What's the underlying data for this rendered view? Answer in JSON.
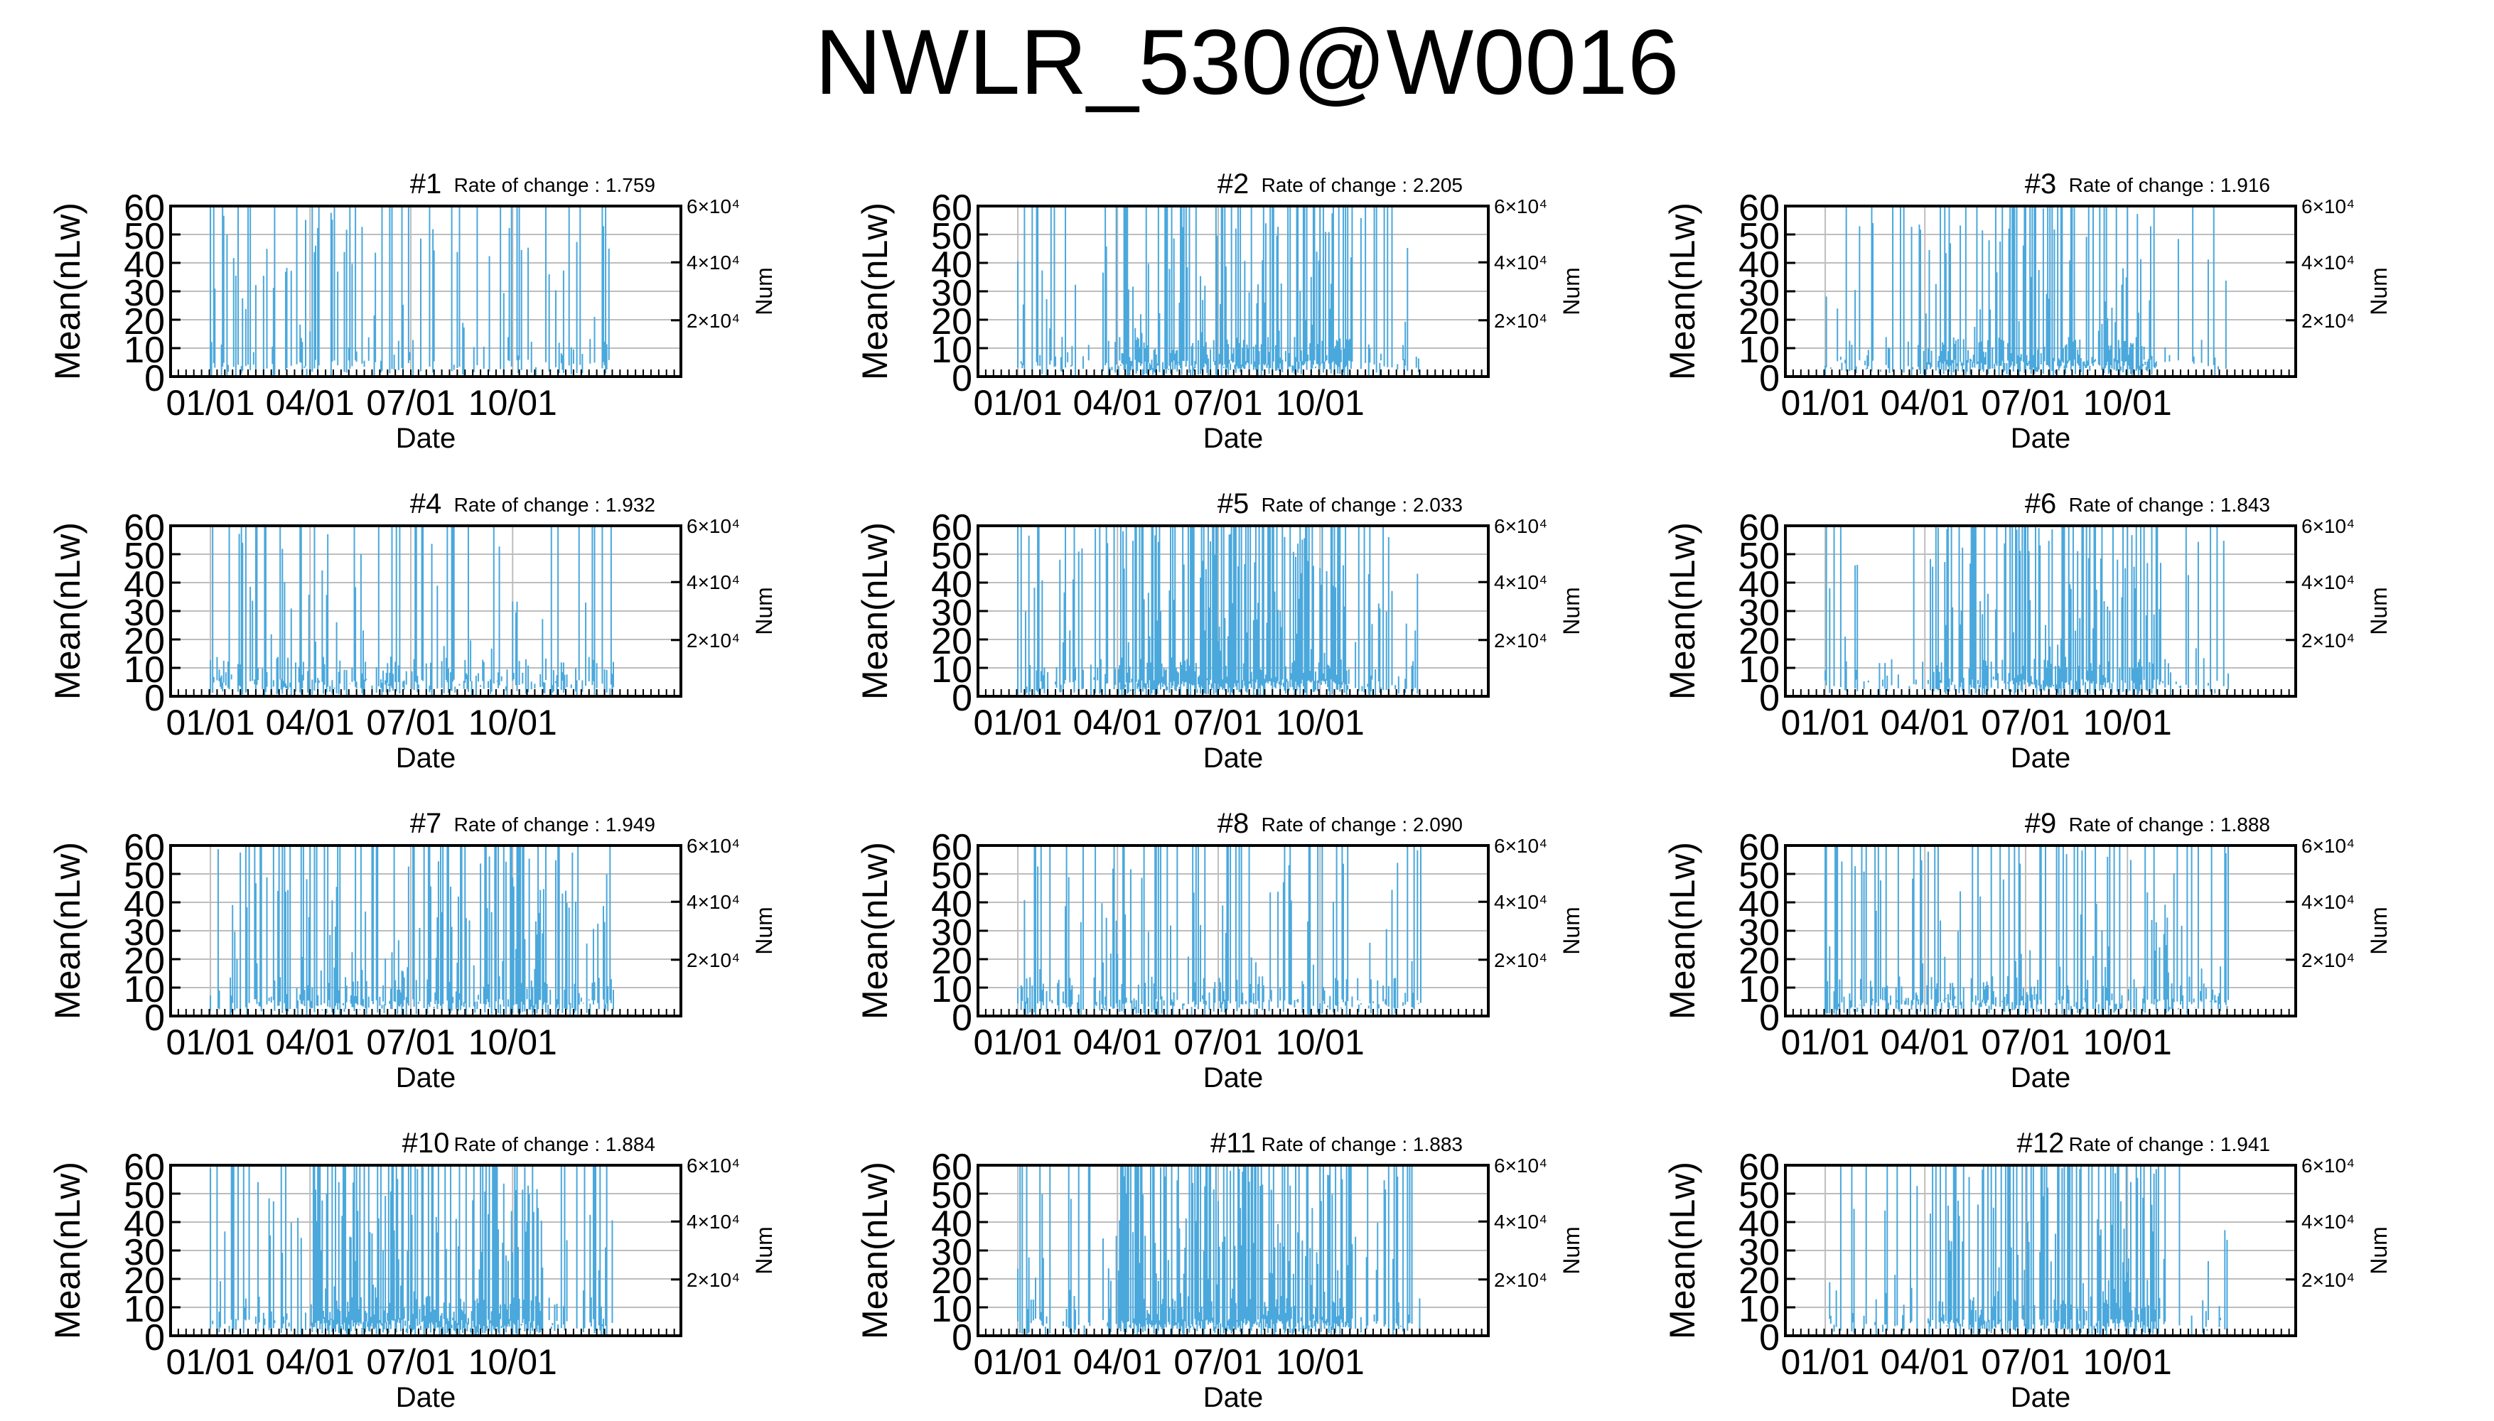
{
  "figure": {
    "title": "NWLR_530@W0016"
  },
  "chart_data": [
    {
      "type": "bar",
      "title": "#1",
      "annotation": "Rate of change : 1.759",
      "xlabel": "Date",
      "ylabel": "Mean(nLw)",
      "y2label": "Num",
      "ylim": [
        0,
        60
      ],
      "y_ticks": [
        0,
        10,
        20,
        30,
        40,
        50,
        60
      ],
      "y2_tick_labels": [
        "2×10⁴",
        "4×10⁴",
        "6×10⁴"
      ],
      "x_tick_labels": [
        "01/01",
        "04/01",
        "07/01",
        "10/01"
      ],
      "grid": true,
      "seed": 11,
      "density": 0.32,
      "peak": 0.7,
      "profile": "uniform"
    },
    {
      "type": "bar",
      "title": "#2",
      "annotation": "Rate of change : 2.205",
      "xlabel": "Date",
      "ylabel": "Mean(nLw)",
      "y2label": "Num",
      "ylim": [
        0,
        60
      ],
      "y_ticks": [
        0,
        10,
        20,
        30,
        40,
        50,
        60
      ],
      "y2_tick_labels": [
        "2×10⁴",
        "4×10⁴",
        "6×10⁴"
      ],
      "x_tick_labels": [
        "01/01",
        "04/01",
        "07/01",
        "10/01"
      ],
      "grid": true,
      "seed": 23,
      "density": 0.55,
      "peak": 0.45,
      "profile": "mid"
    },
    {
      "type": "bar",
      "title": "#3",
      "annotation": "Rate of change : 1.916",
      "xlabel": "Date",
      "ylabel": "Mean(nLw)",
      "y2label": "Num",
      "ylim": [
        0,
        60
      ],
      "y_ticks": [
        0,
        10,
        20,
        30,
        40,
        50,
        60
      ],
      "y2_tick_labels": [
        "2×10⁴",
        "4×10⁴",
        "6×10⁴"
      ],
      "x_tick_labels": [
        "01/01",
        "04/01",
        "07/01",
        "10/01"
      ],
      "grid": true,
      "seed": 37,
      "density": 0.55,
      "peak": 0.45,
      "profile": "mid"
    },
    {
      "type": "bar",
      "title": "#4",
      "annotation": "Rate of change : 1.932",
      "xlabel": "Date",
      "ylabel": "Mean(nLw)",
      "y2label": "Num",
      "ylim": [
        0,
        60
      ],
      "y_ticks": [
        0,
        10,
        20,
        30,
        40,
        50,
        60
      ],
      "y2_tick_labels": [
        "2×10⁴",
        "4×10⁴",
        "6×10⁴"
      ],
      "x_tick_labels": [
        "01/01",
        "04/01",
        "07/01",
        "10/01"
      ],
      "grid": true,
      "seed": 41,
      "density": 0.5,
      "peak": 0.35,
      "profile": "uniform"
    },
    {
      "type": "bar",
      "title": "#5",
      "annotation": "Rate of change : 2.033",
      "xlabel": "Date",
      "ylabel": "Mean(nLw)",
      "y2label": "Num",
      "ylim": [
        0,
        60
      ],
      "y_ticks": [
        0,
        10,
        20,
        30,
        40,
        50,
        60
      ],
      "y2_tick_labels": [
        "2×10⁴",
        "4×10⁴",
        "6×10⁴"
      ],
      "x_tick_labels": [
        "01/01",
        "04/01",
        "07/01",
        "10/01"
      ],
      "grid": true,
      "seed": 53,
      "density": 0.62,
      "peak": 0.6,
      "profile": "mid"
    },
    {
      "type": "bar",
      "title": "#6",
      "annotation": "Rate of change : 1.843",
      "xlabel": "Date",
      "ylabel": "Mean(nLw)",
      "y2label": "Num",
      "ylim": [
        0,
        60
      ],
      "y_ticks": [
        0,
        10,
        20,
        30,
        40,
        50,
        60
      ],
      "y2_tick_labels": [
        "2×10⁴",
        "4×10⁴",
        "6×10⁴"
      ],
      "x_tick_labels": [
        "01/01",
        "04/01",
        "07/01",
        "10/01"
      ],
      "grid": true,
      "seed": 61,
      "density": 0.45,
      "peak": 0.55,
      "profile": "mid"
    },
    {
      "type": "bar",
      "title": "#7",
      "annotation": "Rate of change : 1.949",
      "xlabel": "Date",
      "ylabel": "Mean(nLw)",
      "y2label": "Num",
      "ylim": [
        0,
        60
      ],
      "y_ticks": [
        0,
        10,
        20,
        30,
        40,
        50,
        60
      ],
      "y2_tick_labels": [
        "2×10⁴",
        "4×10⁴",
        "6×10⁴"
      ],
      "x_tick_labels": [
        "01/01",
        "04/01",
        "07/01",
        "10/01"
      ],
      "grid": true,
      "seed": 71,
      "density": 0.55,
      "peak": 0.55,
      "profile": "late"
    },
    {
      "type": "bar",
      "title": "#8",
      "annotation": "Rate of change : 2.090",
      "xlabel": "Date",
      "ylabel": "Mean(nLw)",
      "y2label": "Num",
      "ylim": [
        0,
        60
      ],
      "y_ticks": [
        0,
        10,
        20,
        30,
        40,
        50,
        60
      ],
      "y2_tick_labels": [
        "2×10⁴",
        "4×10⁴",
        "6×10⁴"
      ],
      "x_tick_labels": [
        "01/01",
        "04/01",
        "07/01",
        "10/01"
      ],
      "grid": true,
      "seed": 83,
      "density": 0.5,
      "peak": 0.45,
      "profile": "uniform"
    },
    {
      "type": "bar",
      "title": "#9",
      "annotation": "Rate of change : 1.888",
      "xlabel": "Date",
      "ylabel": "Mean(nLw)",
      "y2label": "Num",
      "ylim": [
        0,
        60
      ],
      "y_ticks": [
        0,
        10,
        20,
        30,
        40,
        50,
        60
      ],
      "y2_tick_labels": [
        "2×10⁴",
        "4×10⁴",
        "6×10⁴"
      ],
      "x_tick_labels": [
        "01/01",
        "04/01",
        "07/01",
        "10/01"
      ],
      "grid": true,
      "seed": 97,
      "density": 0.55,
      "peak": 0.5,
      "profile": "uniform"
    },
    {
      "type": "bar",
      "title": "#10",
      "annotation": "Rate of change : 1.884",
      "xlabel": "Date",
      "ylabel": "Mean(nLw)",
      "y2label": "Num",
      "ylim": [
        0,
        60
      ],
      "y_ticks": [
        0,
        10,
        20,
        30,
        40,
        50,
        60
      ],
      "y2_tick_labels": [
        "2×10⁴",
        "4×10⁴",
        "6×10⁴"
      ],
      "x_tick_labels": [
        "01/01",
        "04/01",
        "07/01",
        "10/01"
      ],
      "grid": true,
      "seed": 101,
      "density": 0.62,
      "peak": 0.55,
      "profile": "mid"
    },
    {
      "type": "bar",
      "title": "#11",
      "annotation": "Rate of change : 1.883",
      "xlabel": "Date",
      "ylabel": "Mean(nLw)",
      "y2label": "Num",
      "ylim": [
        0,
        60
      ],
      "y_ticks": [
        0,
        10,
        20,
        30,
        40,
        50,
        60
      ],
      "y2_tick_labels": [
        "2×10⁴",
        "4×10⁴",
        "6×10⁴"
      ],
      "x_tick_labels": [
        "01/01",
        "04/01",
        "07/01",
        "10/01"
      ],
      "grid": true,
      "seed": 113,
      "density": 0.6,
      "peak": 0.65,
      "profile": "mid"
    },
    {
      "type": "bar",
      "title": "#12",
      "annotation": "Rate of change : 1.941",
      "xlabel": "Date",
      "ylabel": "Mean(nLw)",
      "y2label": "Num",
      "ylim": [
        0,
        60
      ],
      "y_ticks": [
        0,
        10,
        20,
        30,
        40,
        50,
        60
      ],
      "y2_tick_labels": [
        "2×10⁴",
        "4×10⁴",
        "6×10⁴"
      ],
      "x_tick_labels": [
        "01/01",
        "04/01",
        "07/01",
        "10/01"
      ],
      "grid": true,
      "seed": 127,
      "density": 0.45,
      "peak": 0.6,
      "profile": "mid"
    }
  ],
  "colors": {
    "series": "#4aa8dc",
    "grid": "#bdbdbd",
    "axis": "#000000"
  }
}
